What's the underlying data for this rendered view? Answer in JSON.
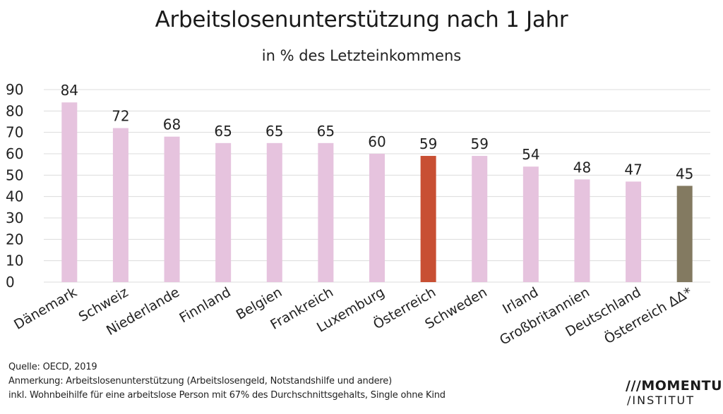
{
  "title": "Arbeitslosenunterstützung nach 1 Jahr",
  "subtitle": "in % des Letzteinkommens",
  "notes": {
    "source": "Quelle: OECD, 2019",
    "remark": "Anmerkung: Arbeitslosenunterstützung (Arbeitslosengeld, Notstandshilfe und andere)",
    "detail": "inkl. Wohnbeihilfe für eine arbeitslose Person mit 67% des Durchschnittsgehalts, Single ohne Kind"
  },
  "logo": {
    "line1": "MOMENTUM",
    "line2": "INSTITUT"
  },
  "colors": {
    "default": "#e6c3de",
    "highlight": "#c84f33",
    "variant": "#837a61",
    "grid": "#dcdcdc"
  },
  "chart_data": {
    "type": "bar",
    "title": "Arbeitslosenunterstützung nach 1 Jahr",
    "subtitle": "in % des Letzteinkommens",
    "categories": [
      "Dänemark",
      "Schweiz",
      "Niederlande",
      "Finnland",
      "Belgien",
      "Frankreich",
      "Luxemburg",
      "Österreich",
      "Schweden",
      "Irland",
      "Großbritannien",
      "Deutschland",
      "Österreich ΔΔ*"
    ],
    "values": [
      84,
      72,
      68,
      65,
      65,
      65,
      60,
      59,
      59,
      54,
      48,
      47,
      45
    ],
    "bar_colors": [
      "default",
      "default",
      "default",
      "default",
      "default",
      "default",
      "default",
      "highlight",
      "default",
      "default",
      "default",
      "default",
      "variant"
    ],
    "ylim": [
      0,
      90
    ],
    "yticks": [
      0,
      10,
      20,
      30,
      40,
      50,
      60,
      70,
      80,
      90
    ],
    "grid": true,
    "data_labels": true
  }
}
